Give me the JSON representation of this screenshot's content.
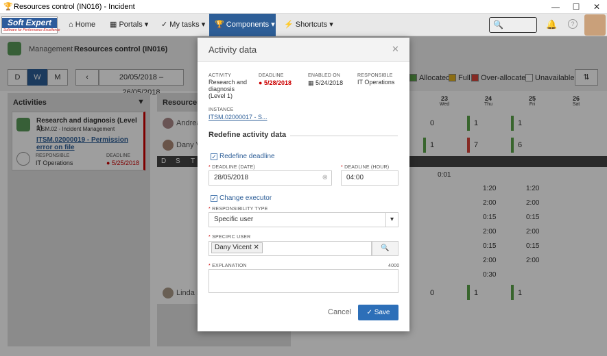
{
  "window": {
    "title": "Resources control (IN016) - Incident",
    "controls": [
      "—",
      "☐",
      "✕"
    ]
  },
  "logo": {
    "brand": "Soft Expert",
    "tagline": "Software for Performance Excellence"
  },
  "nav": {
    "home": "Home",
    "portals": "Portals",
    "my_tasks": "My tasks",
    "components": "Components",
    "shortcuts": "Shortcuts"
  },
  "breadcrumb": {
    "parent": "Management",
    "current": "Resources control (IN016)"
  },
  "toolbar": {
    "view_day": "D",
    "view_week": "W",
    "view_month": "M",
    "date_range": "20/05/2018 – 26/05/2018",
    "legend": [
      {
        "label": "Allocated",
        "color": "#5ba34a"
      },
      {
        "label": "Full",
        "color": "#e0b020"
      },
      {
        "label": "Over-allocated",
        "color": "#d9443b"
      },
      {
        "label": "Unavailable",
        "color": "#ffffff"
      }
    ]
  },
  "activities": {
    "title": "Activities",
    "card": {
      "name": "Research and diagnosis (Level 1)",
      "process": "ITSM.02 - Incident Management",
      "link": "ITSM.02000019 - Permission error on file",
      "responsible_label": "RESPONSIBLE",
      "responsible": "IT Operations",
      "deadline_label": "DEADLINE",
      "deadline": "5/25/2018"
    }
  },
  "resources": {
    "title": "Resources",
    "people": [
      "Andreas",
      "Dany Vi",
      "Linda B"
    ],
    "cols": [
      "D",
      "S",
      "T"
    ]
  },
  "grid": {
    "days": [
      {
        "num": "23",
        "name": "Wed"
      },
      {
        "num": "24",
        "name": "Thu"
      },
      {
        "num": "25",
        "name": "Fri"
      },
      {
        "num": "26",
        "name": "Sat"
      }
    ],
    "row_andreas": [
      "0",
      "1",
      "1"
    ],
    "row_dany": [
      "1",
      "7",
      "6"
    ],
    "row_linda": [
      "0",
      "1",
      "1"
    ],
    "times": [
      [
        "0:01",
        "",
        ""
      ],
      [
        "",
        "1:20",
        "1:20"
      ],
      [
        "",
        "2:00",
        "2:00"
      ],
      [
        "",
        "0:15",
        "0:15"
      ],
      [
        "",
        "2:00",
        "2:00"
      ],
      [
        "",
        "0:15",
        "0:15"
      ],
      [
        "",
        "2:00",
        "2:00"
      ],
      [
        "",
        "0:30",
        ""
      ]
    ]
  },
  "modal": {
    "title": "Activity data",
    "activity_label": "ACTIVITY",
    "activity": "Research and diagnosis (Level 1)",
    "deadline_label": "DEADLINE",
    "deadline": "5/28/2018",
    "enabled_label": "ENABLED ON",
    "enabled": "5/24/2018",
    "responsible_label": "RESPONSIBLE",
    "responsible": "IT Operations",
    "instance_label": "INSTANCE",
    "instance": "ITSM.02000017 - S...",
    "section": "Redefine activity data",
    "redefine_deadline": "Redefine deadline",
    "deadline_date_label": "DEADLINE (DATE)",
    "deadline_date": "28/05/2018",
    "deadline_hour_label": "DEADLINE (HOUR)",
    "deadline_hour": "04:00",
    "change_executor": "Change executor",
    "resp_type_label": "RESPONSIBILITY TYPE",
    "resp_type": "Specific user",
    "specific_user_label": "SPECIFIC USER",
    "specific_user": "Dany Vicent",
    "explanation_label": "EXPLANATION",
    "explanation_max": "4000",
    "cancel": "Cancel",
    "save": "Save"
  }
}
